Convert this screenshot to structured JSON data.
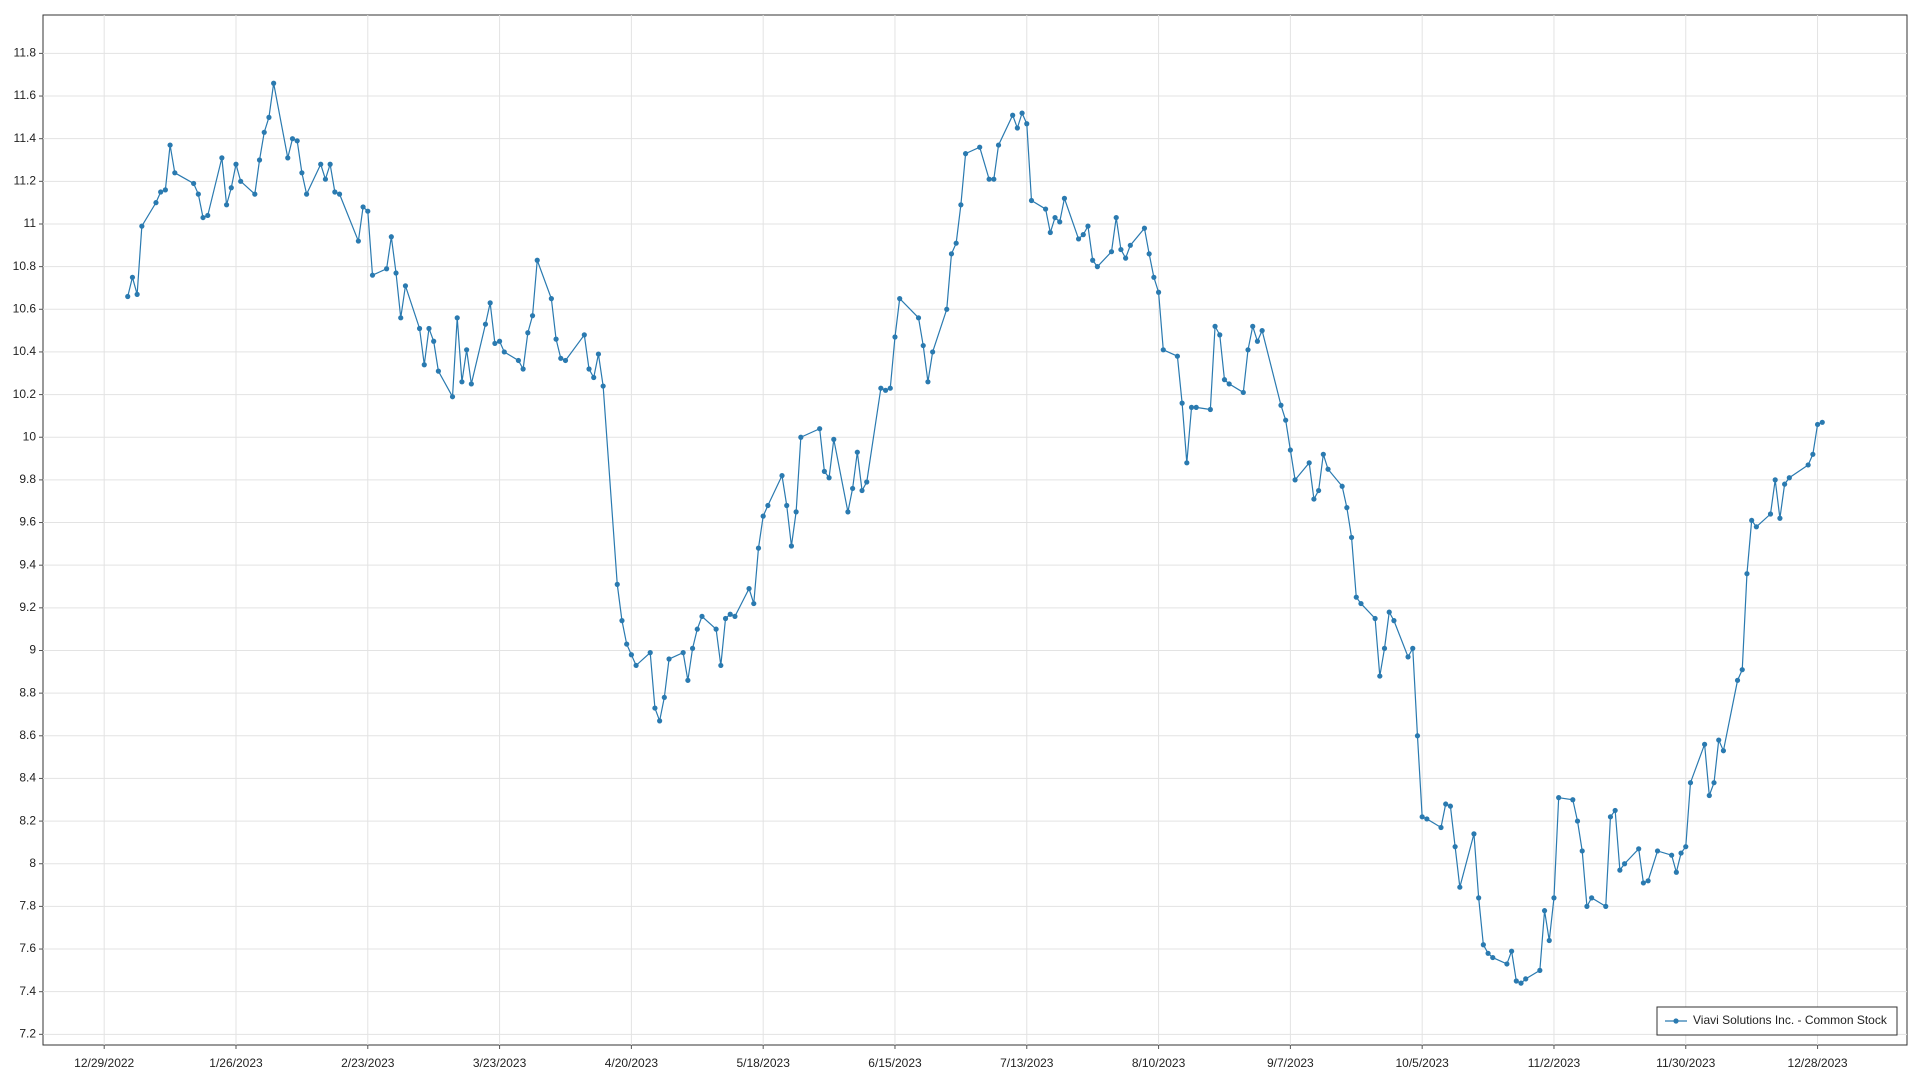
{
  "chart_data": {
    "type": "line",
    "x": [
      "1/3/2023",
      "1/4/2023",
      "1/5/2023",
      "1/6/2023",
      "1/9/2023",
      "1/10/2023",
      "1/11/2023",
      "1/12/2023",
      "1/13/2023",
      "1/17/2023",
      "1/18/2023",
      "1/19/2023",
      "1/20/2023",
      "1/23/2023",
      "1/24/2023",
      "1/25/2023",
      "1/26/2023",
      "1/27/2023",
      "1/30/2023",
      "1/31/2023",
      "2/1/2023",
      "2/2/2023",
      "2/3/2023",
      "2/6/2023",
      "2/7/2023",
      "2/8/2023",
      "2/9/2023",
      "2/10/2023",
      "2/13/2023",
      "2/14/2023",
      "2/15/2023",
      "2/16/2023",
      "2/17/2023",
      "2/21/2023",
      "2/22/2023",
      "2/23/2023",
      "2/24/2023",
      "2/27/2023",
      "2/28/2023",
      "3/1/2023",
      "3/2/2023",
      "3/3/2023",
      "3/6/2023",
      "3/7/2023",
      "3/8/2023",
      "3/9/2023",
      "3/10/2023",
      "3/13/2023",
      "3/14/2023",
      "3/15/2023",
      "3/16/2023",
      "3/17/2023",
      "3/20/2023",
      "3/21/2023",
      "3/22/2023",
      "3/23/2023",
      "3/24/2023",
      "3/27/2023",
      "3/28/2023",
      "3/29/2023",
      "3/30/2023",
      "3/31/2023",
      "4/3/2023",
      "4/4/2023",
      "4/5/2023",
      "4/6/2023",
      "4/10/2023",
      "4/11/2023",
      "4/12/2023",
      "4/13/2023",
      "4/14/2023",
      "4/17/2023",
      "4/18/2023",
      "4/19/2023",
      "4/20/2023",
      "4/21/2023",
      "4/24/2023",
      "4/25/2023",
      "4/26/2023",
      "4/27/2023",
      "4/28/2023",
      "5/1/2023",
      "5/2/2023",
      "5/3/2023",
      "5/4/2023",
      "5/5/2023",
      "5/8/2023",
      "5/9/2023",
      "5/10/2023",
      "5/11/2023",
      "5/12/2023",
      "5/15/2023",
      "5/16/2023",
      "5/17/2023",
      "5/18/2023",
      "5/19/2023",
      "5/22/2023",
      "5/23/2023",
      "5/24/2023",
      "5/25/2023",
      "5/26/2023",
      "5/30/2023",
      "5/31/2023",
      "6/1/2023",
      "6/2/2023",
      "6/5/2023",
      "6/6/2023",
      "6/7/2023",
      "6/8/2023",
      "6/9/2023",
      "6/12/2023",
      "6/13/2023",
      "6/14/2023",
      "6/15/2023",
      "6/16/2023",
      "6/20/2023",
      "6/21/2023",
      "6/22/2023",
      "6/23/2023",
      "6/26/2023",
      "6/27/2023",
      "6/28/2023",
      "6/29/2023",
      "6/30/2023",
      "7/3/2023",
      "7/5/2023",
      "7/6/2023",
      "7/7/2023",
      "7/10/2023",
      "7/11/2023",
      "7/12/2023",
      "7/13/2023",
      "7/14/2023",
      "7/17/2023",
      "7/18/2023",
      "7/19/2023",
      "7/20/2023",
      "7/21/2023",
      "7/24/2023",
      "7/25/2023",
      "7/26/2023",
      "7/27/2023",
      "7/28/2023",
      "7/31/2023",
      "8/1/2023",
      "8/2/2023",
      "8/3/2023",
      "8/4/2023",
      "8/7/2023",
      "8/8/2023",
      "8/9/2023",
      "8/10/2023",
      "8/11/2023",
      "8/14/2023",
      "8/15/2023",
      "8/16/2023",
      "8/17/2023",
      "8/18/2023",
      "8/21/2023",
      "8/22/2023",
      "8/23/2023",
      "8/24/2023",
      "8/25/2023",
      "8/28/2023",
      "8/29/2023",
      "8/30/2023",
      "8/31/2023",
      "9/1/2023",
      "9/5/2023",
      "9/6/2023",
      "9/7/2023",
      "9/8/2023",
      "9/11/2023",
      "9/12/2023",
      "9/13/2023",
      "9/14/2023",
      "9/15/2023",
      "9/18/2023",
      "9/19/2023",
      "9/20/2023",
      "9/21/2023",
      "9/22/2023",
      "9/25/2023",
      "9/26/2023",
      "9/27/2023",
      "9/28/2023",
      "9/29/2023",
      "10/2/2023",
      "10/3/2023",
      "10/4/2023",
      "10/5/2023",
      "10/6/2023",
      "10/9/2023",
      "10/10/2023",
      "10/11/2023",
      "10/12/2023",
      "10/13/2023",
      "10/16/2023",
      "10/17/2023",
      "10/18/2023",
      "10/19/2023",
      "10/20/2023",
      "10/23/2023",
      "10/24/2023",
      "10/25/2023",
      "10/26/2023",
      "10/27/2023",
      "10/30/2023",
      "10/31/2023",
      "11/1/2023",
      "11/2/2023",
      "11/3/2023",
      "11/6/2023",
      "11/7/2023",
      "11/8/2023",
      "11/9/2023",
      "11/10/2023",
      "11/13/2023",
      "11/14/2023",
      "11/15/2023",
      "11/16/2023",
      "11/17/2023",
      "11/20/2023",
      "11/21/2023",
      "11/22/2023",
      "11/24/2023",
      "11/27/2023",
      "11/28/2023",
      "11/29/2023",
      "11/30/2023",
      "12/1/2023",
      "12/4/2023",
      "12/5/2023",
      "12/6/2023",
      "12/7/2023",
      "12/8/2023",
      "12/11/2023",
      "12/12/2023",
      "12/13/2023",
      "12/14/2023",
      "12/15/2023",
      "12/18/2023",
      "12/19/2023",
      "12/20/2023",
      "12/21/2023",
      "12/22/2023",
      "12/26/2023",
      "12/27/2023",
      "12/28/2023",
      "12/29/2023"
    ],
    "series": [
      {
        "name": "Viavi Solutions Inc. - Common Stock",
        "color": "#2a7ab0",
        "values": [
          10.66,
          10.75,
          10.67,
          10.99,
          11.1,
          11.15,
          11.16,
          11.37,
          11.24,
          11.19,
          11.14,
          11.03,
          11.04,
          11.31,
          11.09,
          11.17,
          11.28,
          11.2,
          11.14,
          11.3,
          11.43,
          11.5,
          11.66,
          11.31,
          11.4,
          11.39,
          11.24,
          11.14,
          11.28,
          11.21,
          11.28,
          11.15,
          11.14,
          10.92,
          11.08,
          11.06,
          10.76,
          10.79,
          10.94,
          10.77,
          10.56,
          10.71,
          10.51,
          10.34,
          10.51,
          10.45,
          10.31,
          10.19,
          10.56,
          10.26,
          10.41,
          10.25,
          10.53,
          10.63,
          10.44,
          10.45,
          10.4,
          10.36,
          10.32,
          10.49,
          10.57,
          10.83,
          10.65,
          10.46,
          10.37,
          10.36,
          10.48,
          10.32,
          10.28,
          10.39,
          10.24,
          9.31,
          9.14,
          9.03,
          8.98,
          8.93,
          8.99,
          8.73,
          8.67,
          8.78,
          8.96,
          8.99,
          8.86,
          9.01,
          9.1,
          9.16,
          9.1,
          8.93,
          9.15,
          9.17,
          9.16,
          9.29,
          9.22,
          9.48,
          9.63,
          9.68,
          9.82,
          9.68,
          9.49,
          9.65,
          10.0,
          10.04,
          9.84,
          9.81,
          9.99,
          9.65,
          9.76,
          9.93,
          9.75,
          9.79,
          10.23,
          10.22,
          10.23,
          10.47,
          10.65,
          10.56,
          10.43,
          10.26,
          10.4,
          10.6,
          10.86,
          10.91,
          11.09,
          11.33,
          11.36,
          11.21,
          11.21,
          11.37,
          11.51,
          11.45,
          11.52,
          11.47,
          11.11,
          11.07,
          10.96,
          11.03,
          11.01,
          11.12,
          10.93,
          10.95,
          10.99,
          10.83,
          10.8,
          10.87,
          11.03,
          10.88,
          10.84,
          10.9,
          10.98,
          10.86,
          10.75,
          10.68,
          10.41,
          10.38,
          10.16,
          9.88,
          10.14,
          10.14,
          10.13,
          10.52,
          10.48,
          10.27,
          10.25,
          10.21,
          10.41,
          10.52,
          10.45,
          10.5,
          10.15,
          10.08,
          9.94,
          9.8,
          9.88,
          9.71,
          9.75,
          9.92,
          9.85,
          9.77,
          9.67,
          9.53,
          9.25,
          9.22,
          9.15,
          8.88,
          9.01,
          9.18,
          9.14,
          8.97,
          9.01,
          8.6,
          8.22,
          8.21,
          8.17,
          8.28,
          8.27,
          8.08,
          7.89,
          8.14,
          7.84,
          7.62,
          7.58,
          7.56,
          7.53,
          7.59,
          7.45,
          7.44,
          7.46,
          7.5,
          7.78,
          7.64,
          7.84,
          8.31,
          8.3,
          8.2,
          8.06,
          7.8,
          7.84,
          7.8,
          8.22,
          8.25,
          7.97,
          8.0,
          8.07,
          7.91,
          7.92,
          8.06,
          8.04,
          7.96,
          8.05,
          8.08,
          8.38,
          8.56,
          8.32,
          8.38,
          8.58,
          8.53,
          8.86,
          8.91,
          9.36,
          9.61,
          9.58,
          9.64,
          9.8,
          9.62,
          9.78,
          9.81,
          9.87,
          9.92,
          10.06,
          10.07
        ]
      }
    ],
    "xlim": [
      "12/16/2022",
      "1/16/2024"
    ],
    "xticks": [
      "12/29/2022",
      "1/26/2023",
      "2/23/2023",
      "3/23/2023",
      "4/20/2023",
      "5/18/2023",
      "6/15/2023",
      "7/13/2023",
      "8/10/2023",
      "9/7/2023",
      "10/5/2023",
      "11/2/2023",
      "11/30/2023",
      "12/28/2023"
    ],
    "ylim": [
      7.15,
      11.98
    ],
    "yticks": [
      7.2,
      7.4,
      7.6,
      7.8,
      8,
      8.2,
      8.4,
      8.6,
      8.8,
      9,
      9.2,
      9.4,
      9.6,
      9.8,
      10,
      10.2,
      10.4,
      10.6,
      10.8,
      11,
      11.2,
      11.4,
      11.6,
      11.8
    ],
    "grid": true,
    "markers": true,
    "legend": "bottom-right"
  }
}
